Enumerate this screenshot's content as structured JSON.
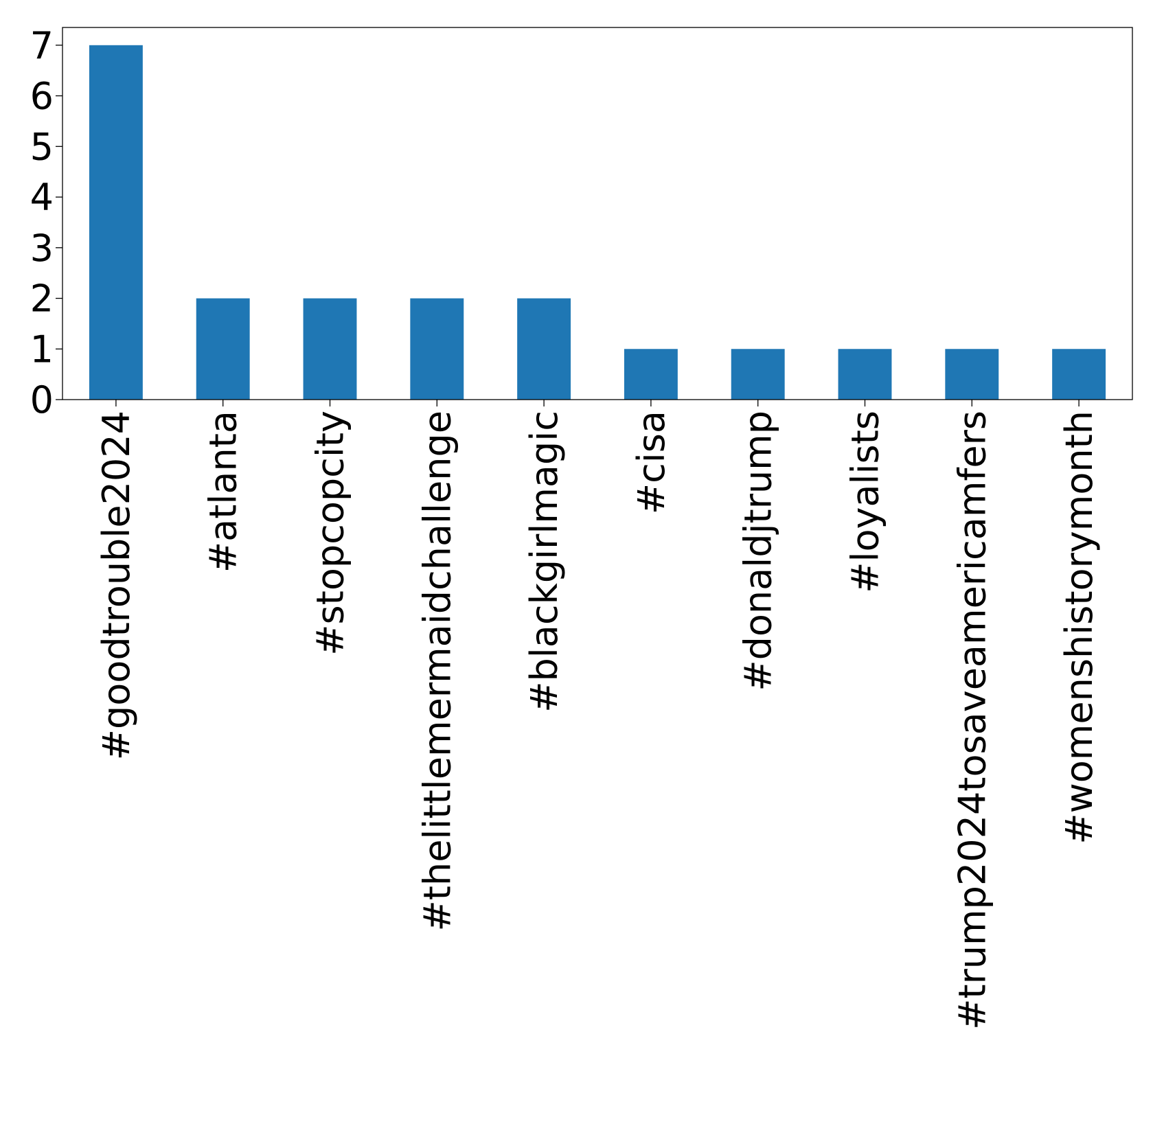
{
  "chart_data": {
    "type": "bar",
    "categories": [
      "#goodtrouble2024",
      "#atlanta",
      "#stopcopcity",
      "#thelittlemermaidchallenge",
      "#blackgirlmagic",
      "#cisa",
      "#donaldjtrump",
      "#loyalists",
      "#trump2024tosaveamericamfers",
      "#womenshistorymonth"
    ],
    "values": [
      7,
      2,
      2,
      2,
      2,
      1,
      1,
      1,
      1,
      1
    ],
    "title": "",
    "xlabel": "",
    "ylabel": "",
    "ylim": [
      0,
      7.35
    ],
    "yticks": [
      0,
      1,
      2,
      3,
      4,
      5,
      6,
      7
    ],
    "grid": false,
    "legend": "none",
    "bar_color": "#1f77b4"
  }
}
